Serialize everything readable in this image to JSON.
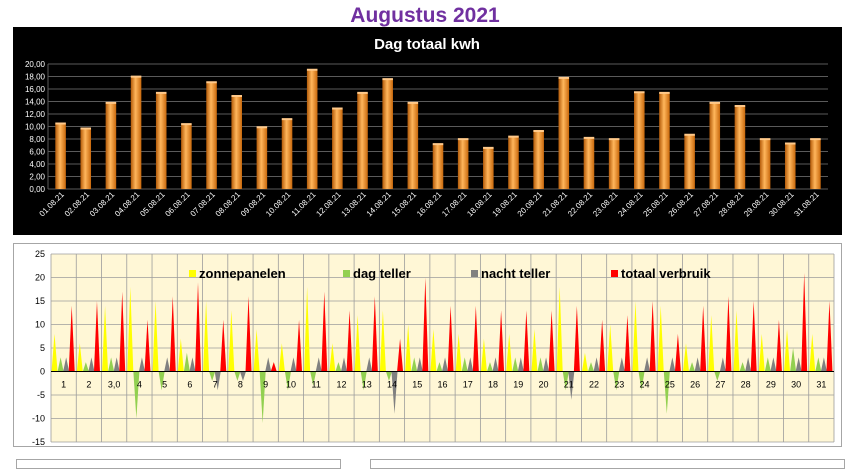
{
  "title": "Augustus 2021",
  "chart_data": [
    {
      "type": "bar",
      "title": "Dag totaal kwh",
      "categories": [
        "01.08.21",
        "02.08.21",
        "03.08.21",
        "04.08.21",
        "05.08.21",
        "06.08.21",
        "07.08.21",
        "08.08.21",
        "09.08.21",
        "10.08.21",
        "11.08.21",
        "12.08.21",
        "13.08.21",
        "14.08.21",
        "15.08.21",
        "16.08.21",
        "17.08.21",
        "18.08.21",
        "19.08.21",
        "20.08.21",
        "21.08.21",
        "22.08.21",
        "23.08.21",
        "24.08.21",
        "25.08.21",
        "26.08.21",
        "27.08.21",
        "28.08.21",
        "29.08.21",
        "30.08.21",
        "31.08.21"
      ],
      "values": [
        10.4,
        9.6,
        13.7,
        17.9,
        15.3,
        10.3,
        17.0,
        14.8,
        9.8,
        11.1,
        19.0,
        12.8,
        15.3,
        17.5,
        13.7,
        7.1,
        7.9,
        6.5,
        8.3,
        9.2,
        17.7,
        8.1,
        7.9,
        15.4,
        15.3,
        8.6,
        13.7,
        13.2,
        7.9,
        7.2,
        7.9
      ],
      "ylim": [
        0,
        20
      ],
      "yticks": [
        "0,00",
        "2,00",
        "4,00",
        "6,00",
        "8,00",
        "10,00",
        "12,00",
        "14,00",
        "16,00",
        "18,00",
        "20,00"
      ],
      "grid": true,
      "colors": {
        "background": "#000000",
        "bar": "#f28a1e",
        "grid": "#5a5a5a",
        "text": "#ffffff"
      }
    },
    {
      "type": "area",
      "categories": [
        "1",
        "2",
        "3,0",
        "4",
        "5",
        "6",
        "7",
        "8",
        "9",
        "10",
        "11",
        "12",
        "13",
        "14",
        "15",
        "16",
        "17",
        "18",
        "19",
        "20",
        "21",
        "22",
        "23",
        "24",
        "25",
        "26",
        "27",
        "28",
        "29",
        "30",
        "31"
      ],
      "ylim": [
        -15,
        25
      ],
      "yticks": [
        "-15",
        "-10",
        "-5",
        "0",
        "5",
        "10",
        "15",
        "20",
        "25"
      ],
      "grid": true,
      "legend": "top",
      "series": [
        {
          "name": "zonnepanelen",
          "color": "#ffff00",
          "values": [
            8,
            6,
            14,
            18,
            15,
            7,
            15,
            13,
            9,
            6,
            18,
            6,
            12,
            13,
            10,
            9,
            8,
            7,
            8,
            9,
            18,
            4,
            10,
            15,
            14,
            6,
            12,
            13,
            8,
            9,
            8
          ]
        },
        {
          "name": "dag teller",
          "color": "#92d050",
          "values": [
            3,
            2,
            3,
            -10,
            -4,
            4,
            -2,
            -2,
            -11,
            -4,
            -3,
            2,
            -4,
            -2,
            3,
            2,
            3,
            2,
            3,
            3,
            -4,
            2,
            -4,
            -4,
            -9,
            2,
            -2,
            2,
            3,
            5,
            3
          ]
        },
        {
          "name": "nacht teller",
          "color": "#808080",
          "values": [
            3,
            3,
            3,
            3,
            3,
            3,
            -4,
            -2,
            3,
            3,
            3,
            3,
            3,
            -9,
            3,
            3,
            3,
            3,
            3,
            3,
            -6,
            3,
            3,
            3,
            3,
            3,
            3,
            3,
            3,
            3,
            3
          ]
        },
        {
          "name": "totaal verbruik",
          "color": "#ff0000",
          "values": [
            14,
            15,
            17,
            11,
            16,
            19,
            11,
            16,
            2,
            11,
            17,
            13,
            16,
            7,
            20,
            14,
            14,
            13,
            13,
            13,
            14,
            11,
            12,
            15,
            8,
            14,
            16,
            15,
            11,
            21,
            15
          ]
        }
      ],
      "colors": {
        "plot_background": "#fff7d6",
        "grid": "#9c9c9c",
        "text": "#000000"
      }
    }
  ]
}
